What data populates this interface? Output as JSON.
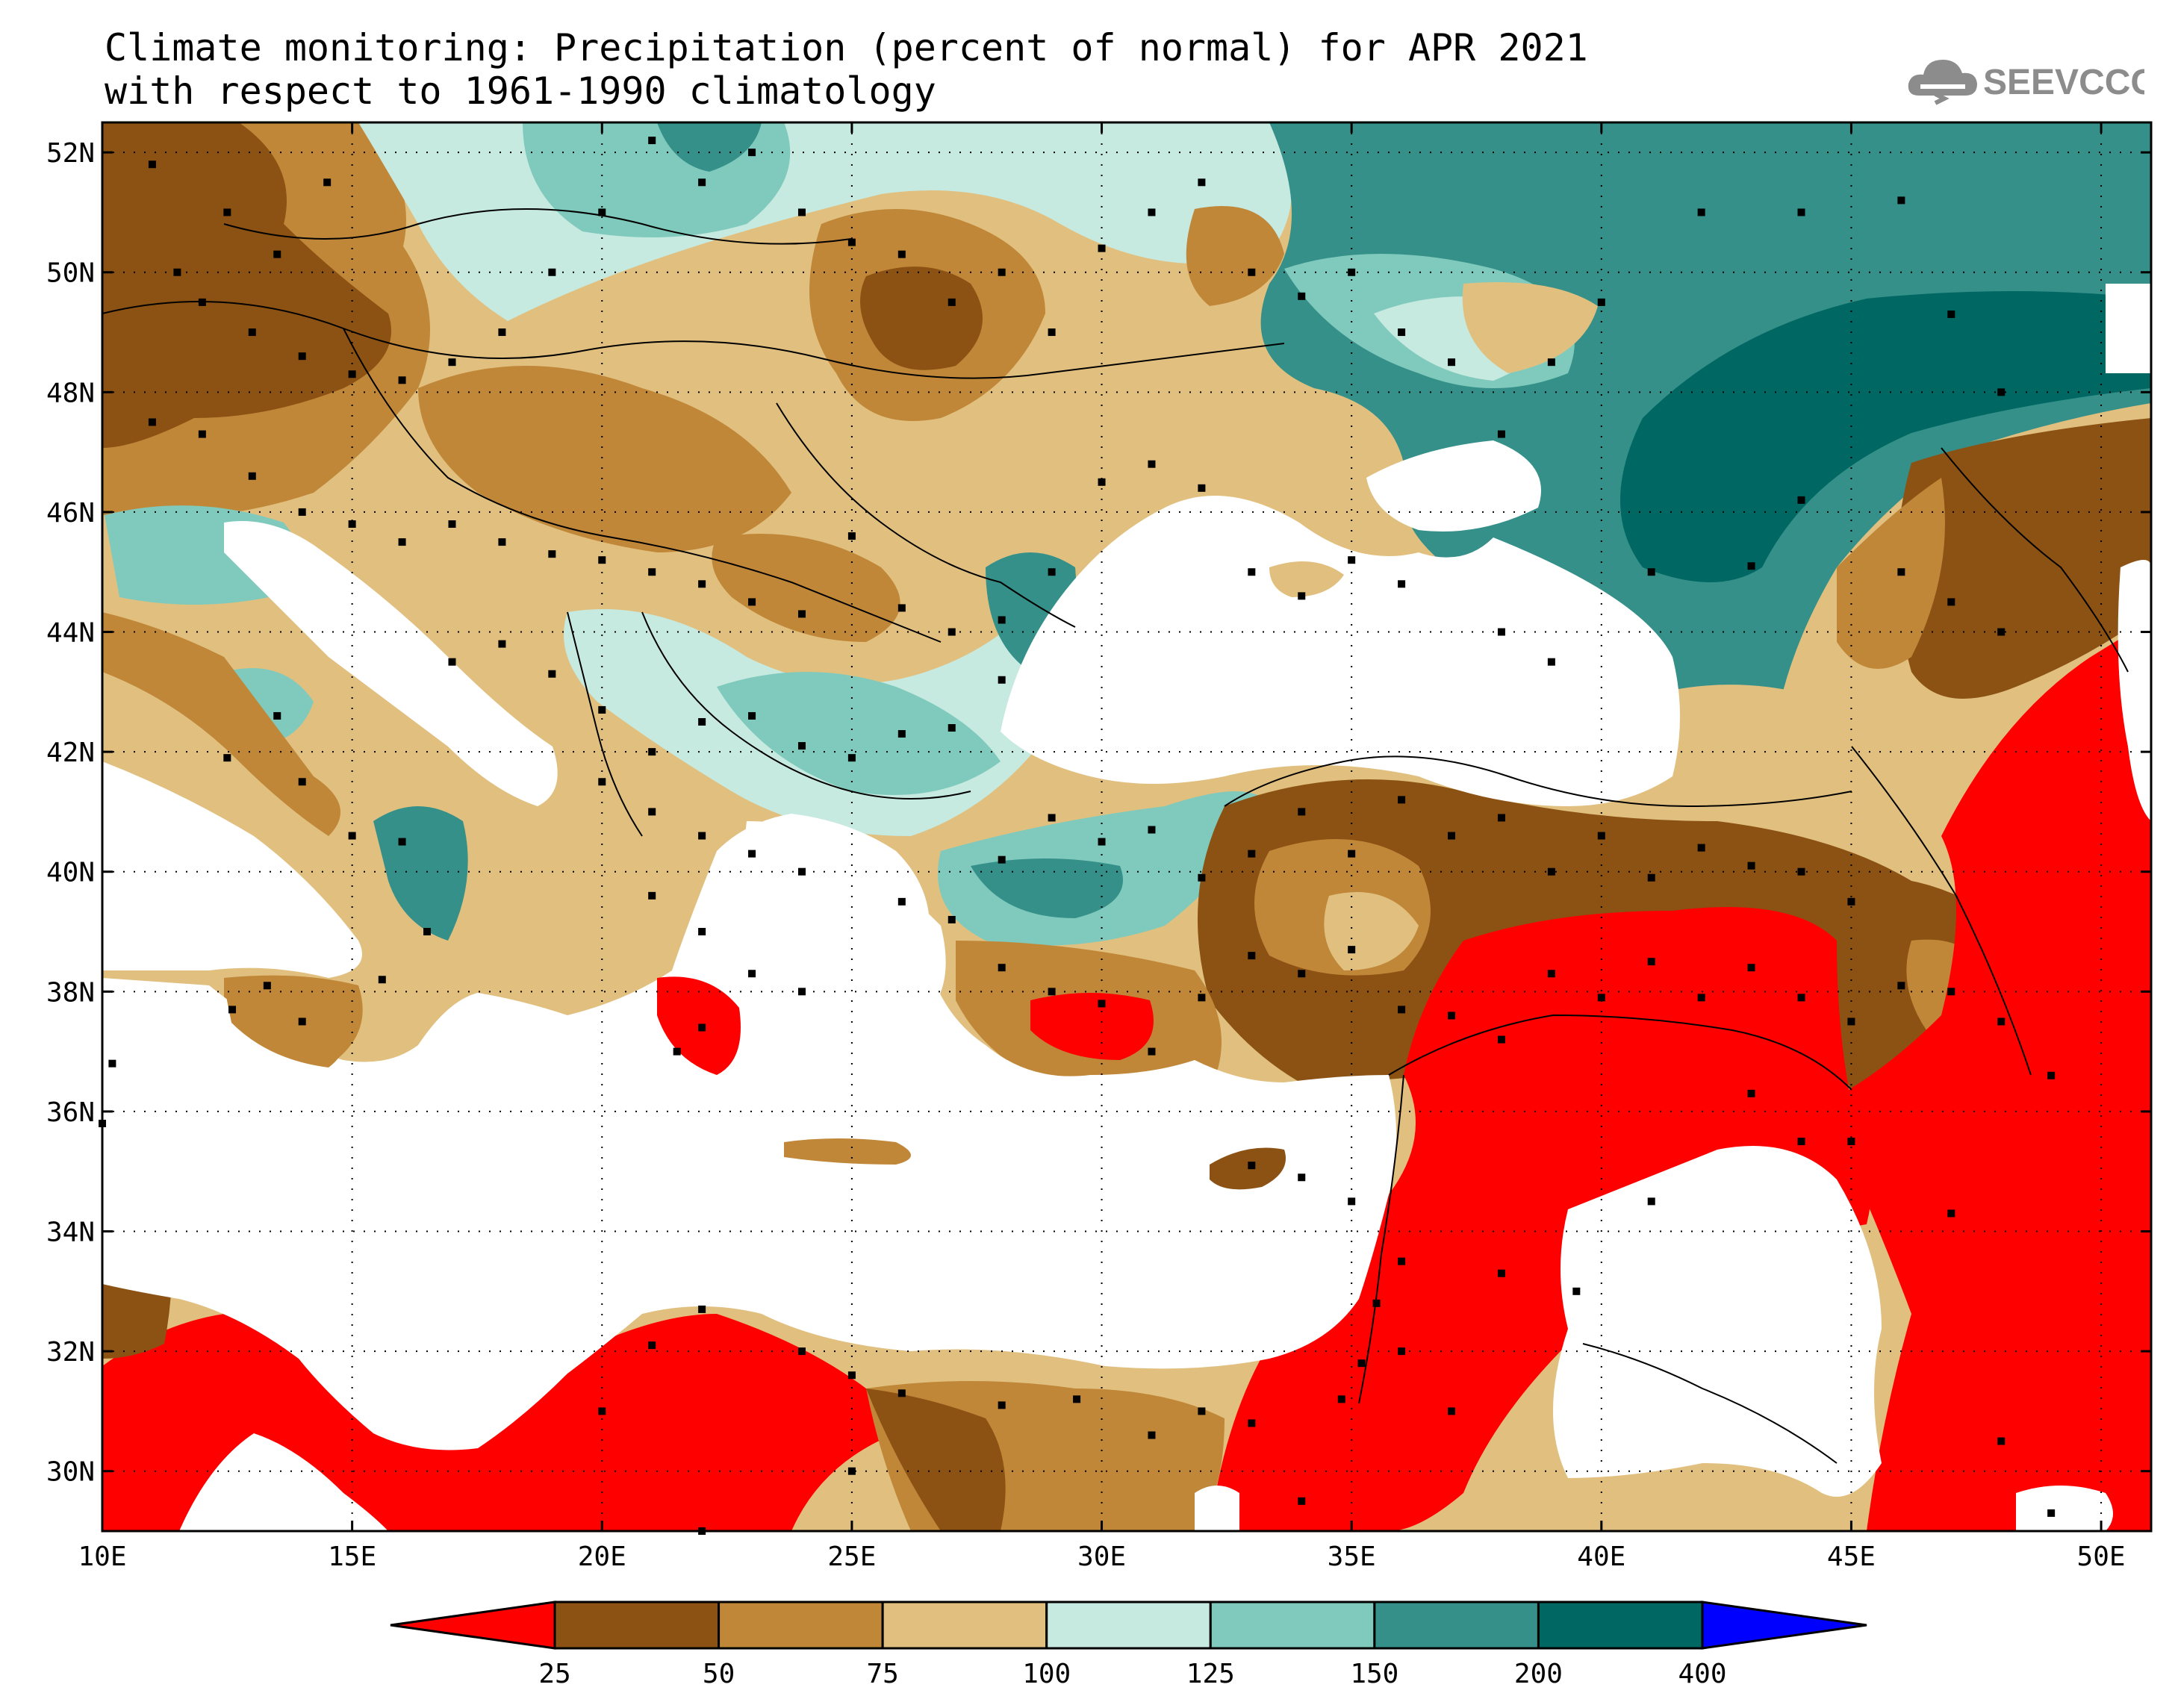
{
  "title_line1": "Climate monitoring: Precipitation (percent of normal) for APR 2021",
  "title_line2": "with respect to 1961-1990 climatology",
  "logo_text": "SEEVCCC",
  "map": {
    "lon_range": [
      10,
      51
    ],
    "lat_range": [
      29,
      52.5
    ],
    "lon_ticks": [
      "10E",
      "15E",
      "20E",
      "25E",
      "30E",
      "35E",
      "40E",
      "45E",
      "50E"
    ],
    "lat_ticks": [
      "52N",
      "50N",
      "48N",
      "46N",
      "44N",
      "42N",
      "40N",
      "38N",
      "36N",
      "34N",
      "32N",
      "30N"
    ]
  },
  "legend": {
    "labels": [
      "25",
      "50",
      "75",
      "100",
      "125",
      "150",
      "200",
      "400"
    ],
    "colors": [
      "#ff0000",
      "#8b5214",
      "#c08739",
      "#e1c07f",
      "#c6e9e0",
      "#7fcabc",
      "#349089",
      "#006762",
      "#0000ff"
    ]
  }
}
